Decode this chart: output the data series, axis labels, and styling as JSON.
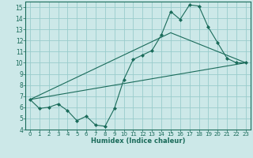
{
  "xlabel": "Humidex (Indice chaleur)",
  "ylabel": "",
  "background_color": "#cce8e8",
  "grid_color": "#99cccc",
  "line_color": "#1a6b5a",
  "xlim": [
    -0.5,
    23.5
  ],
  "ylim": [
    4,
    15.5
  ],
  "xticks": [
    0,
    1,
    2,
    3,
    4,
    5,
    6,
    7,
    8,
    9,
    10,
    11,
    12,
    13,
    14,
    15,
    16,
    17,
    18,
    19,
    20,
    21,
    22,
    23
  ],
  "yticks": [
    4,
    5,
    6,
    7,
    8,
    9,
    10,
    11,
    12,
    13,
    14,
    15
  ],
  "line1_x": [
    0,
    1,
    2,
    3,
    4,
    5,
    6,
    7,
    8,
    9,
    10,
    11,
    12,
    13,
    14,
    15,
    16,
    17,
    18,
    19,
    20,
    21,
    22,
    23
  ],
  "line1_y": [
    6.7,
    5.9,
    6.0,
    6.3,
    5.7,
    4.8,
    5.2,
    4.4,
    4.3,
    5.9,
    8.5,
    10.3,
    10.7,
    11.1,
    12.5,
    14.6,
    13.9,
    15.2,
    15.1,
    13.2,
    11.8,
    10.4,
    10.0,
    10.0
  ],
  "line2_x": [
    0,
    23
  ],
  "line2_y": [
    6.7,
    10.0
  ],
  "line3_x": [
    0,
    15,
    23
  ],
  "line3_y": [
    6.7,
    12.7,
    10.0
  ]
}
